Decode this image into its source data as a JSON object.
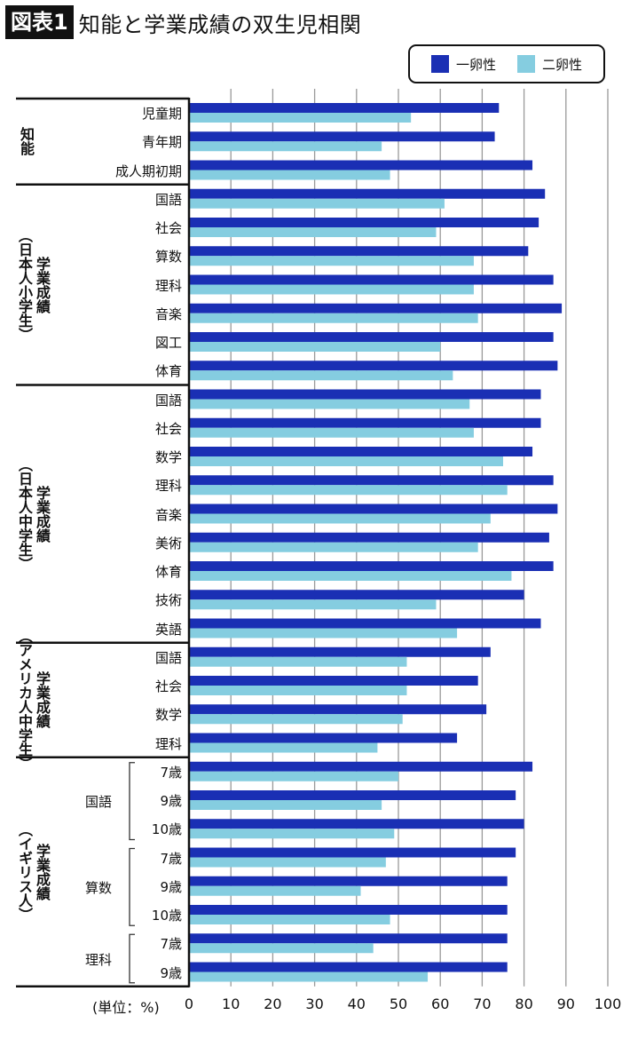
{
  "header": {
    "figure_label": "図表1",
    "title": "知能と学業成績の双生児相関"
  },
  "chart_data": {
    "type": "bar",
    "orientation": "horizontal",
    "title": "知能と学業成績の双生児相関",
    "xlabel": "(単位：%)",
    "xlim": [
      0,
      100
    ],
    "xticks": [
      0,
      10,
      20,
      30,
      40,
      50,
      60,
      70,
      80,
      90,
      100
    ],
    "grid": true,
    "legend_position": "top-right",
    "colors": {
      "identical": "#1a2fb4",
      "fraternal": "#85cde0"
    },
    "series_names": [
      "一卵性",
      "二卵性"
    ],
    "groups": [
      {
        "label": "知能",
        "sub": "",
        "rows": [
          {
            "label": "児童期",
            "values": [
              74,
              53
            ]
          },
          {
            "label": "青年期",
            "values": [
              73,
              46
            ]
          },
          {
            "label": "成人期初期",
            "values": [
              82,
              48
            ]
          }
        ]
      },
      {
        "label": "学業成績",
        "sub": "（日本人小学生）",
        "rows": [
          {
            "label": "国語",
            "values": [
              85,
              61
            ]
          },
          {
            "label": "社会",
            "values": [
              83.5,
              59
            ]
          },
          {
            "label": "算数",
            "values": [
              81,
              68
            ]
          },
          {
            "label": "理科",
            "values": [
              87,
              68
            ]
          },
          {
            "label": "音楽",
            "values": [
              89,
              69
            ]
          },
          {
            "label": "図工",
            "values": [
              87,
              60
            ]
          },
          {
            "label": "体育",
            "values": [
              88,
              63
            ]
          }
        ]
      },
      {
        "label": "学業成績",
        "sub": "（日本人中学生）",
        "rows": [
          {
            "label": "国語",
            "values": [
              84,
              67
            ]
          },
          {
            "label": "社会",
            "values": [
              84,
              68
            ]
          },
          {
            "label": "数学",
            "values": [
              82,
              75
            ]
          },
          {
            "label": "理科",
            "values": [
              87,
              76
            ]
          },
          {
            "label": "音楽",
            "values": [
              88,
              72
            ]
          },
          {
            "label": "美術",
            "values": [
              86,
              69
            ]
          },
          {
            "label": "体育",
            "values": [
              87,
              77
            ]
          },
          {
            "label": "技術",
            "values": [
              80,
              59
            ]
          },
          {
            "label": "英語",
            "values": [
              84,
              64
            ]
          }
        ]
      },
      {
        "label": "学業成績",
        "sub": "（アメリカ人中学生）",
        "rows": [
          {
            "label": "国語",
            "values": [
              72,
              52
            ]
          },
          {
            "label": "社会",
            "values": [
              69,
              52
            ]
          },
          {
            "label": "数学",
            "values": [
              71,
              51
            ]
          },
          {
            "label": "理科",
            "values": [
              64,
              45
            ]
          }
        ]
      },
      {
        "label": "学業成績",
        "sub": "（イギリス人）",
        "subgroups": [
          {
            "label": "国語",
            "start": 0,
            "count": 3
          },
          {
            "label": "算数",
            "start": 3,
            "count": 3
          },
          {
            "label": "理科",
            "start": 6,
            "count": 2
          }
        ],
        "rows": [
          {
            "label": "7歳",
            "values": [
              82,
              50
            ]
          },
          {
            "label": "9歳",
            "values": [
              78,
              46
            ]
          },
          {
            "label": "10歳",
            "values": [
              80,
              49
            ]
          },
          {
            "label": "7歳",
            "values": [
              78,
              47
            ]
          },
          {
            "label": "9歳",
            "values": [
              76,
              41
            ]
          },
          {
            "label": "10歳",
            "values": [
              76,
              48
            ]
          },
          {
            "label": "7歳",
            "values": [
              76,
              44
            ]
          },
          {
            "label": "9歳",
            "values": [
              76,
              57
            ]
          }
        ]
      }
    ]
  }
}
